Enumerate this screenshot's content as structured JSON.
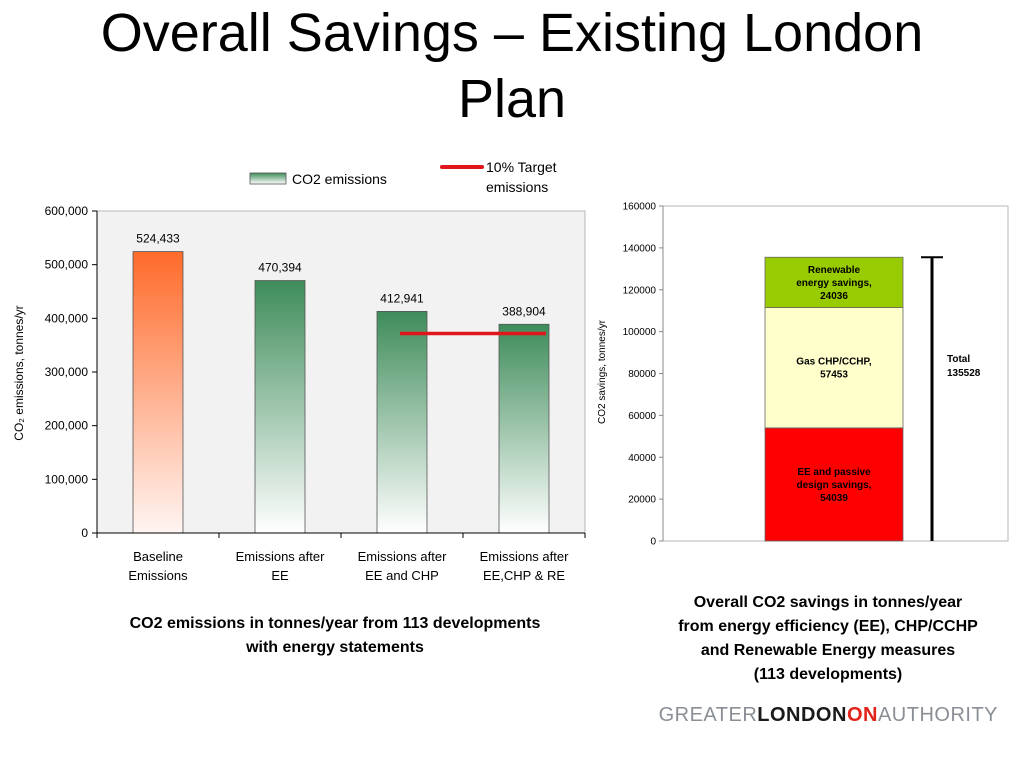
{
  "title": {
    "line1": "Overall Savings – Existing London",
    "line2": "Plan"
  },
  "chart_data": [
    {
      "type": "bar",
      "categories": [
        [
          "Baseline",
          "Emissions"
        ],
        [
          "Emissions after",
          "EE"
        ],
        [
          "Emissions after",
          "EE and CHP"
        ],
        [
          "Emissions after",
          "EE,CHP & RE"
        ]
      ],
      "series": [
        {
          "name": "CO2 emissions",
          "values": [
            524433,
            470394,
            412941,
            388904
          ]
        }
      ],
      "data_labels": [
        "524,433",
        "470,394",
        "412,941",
        "388,904"
      ],
      "yticks": [
        "0",
        "100,000",
        "200,000",
        "300,000",
        "400,000",
        "500,000",
        "600,000"
      ],
      "ylabel": "CO₂ emissions, tonnes/yr",
      "ylim": [
        0,
        600000
      ],
      "target": {
        "label": [
          "10% Target",
          "emissions"
        ],
        "value": 371700,
        "from_category": 2,
        "to_category": 3
      },
      "legend_position": "top",
      "colors": {
        "baseline_top": "#ff6a2a",
        "baseline_bottom": "#fff5f2",
        "series_top": "#3e8c5a",
        "series_bottom": "#ffffff",
        "target": "#e0161b",
        "plot_bg": "#f2f2f2"
      }
    },
    {
      "type": "bar",
      "stacked": true,
      "yticks": [
        "0",
        "20000",
        "40000",
        "60000",
        "80000",
        "100000",
        "120000",
        "140000",
        "160000"
      ],
      "ylabel": "CO2 savings, tonnes/yr",
      "ylim": [
        0,
        160000
      ],
      "segments": [
        {
          "value": 54039,
          "label": [
            "EE and passive",
            "design savings,",
            "54039"
          ],
          "color": "#ff0000"
        },
        {
          "value": 57453,
          "label": [
            "Gas CHP/CCHP,",
            "57453"
          ],
          "color": "#ffffcc"
        },
        {
          "value": 24036,
          "label": [
            "Renewable",
            "energy savings,",
            "24036"
          ],
          "color": "#99cc00"
        }
      ],
      "total": {
        "value": 135528,
        "label": [
          "Total",
          "135528"
        ]
      }
    }
  ],
  "captions": {
    "left": {
      "line1": "CO2 emissions in tonnes/year from 113 developments",
      "line2": "with energy statements"
    },
    "right": {
      "line1": "Overall CO2 savings in tonnes/year",
      "line2": "from energy efficiency (EE), CHP/CCHP",
      "line3": "and Renewable Energy measures",
      "line4": "(113 developments)"
    }
  },
  "logo": {
    "part1": "GREATER",
    "part2": "LONDON",
    "part2b": "ON",
    "part3": "AUTHORITY"
  }
}
